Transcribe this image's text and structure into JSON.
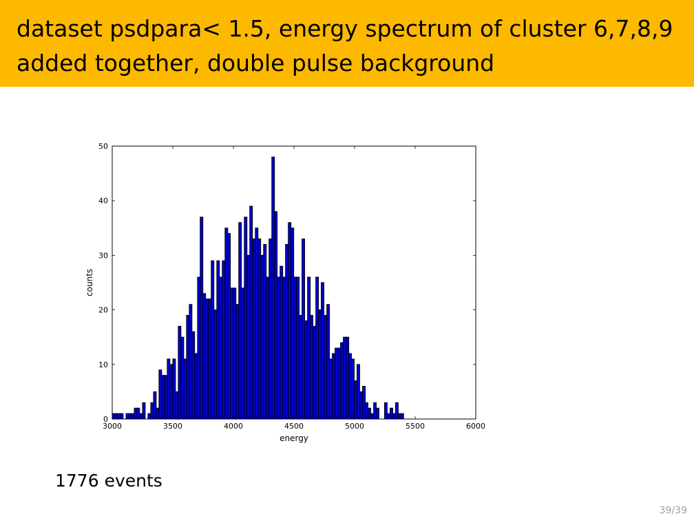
{
  "slide": {
    "title_line1": "dataset psdpara< 1.5, energy spectrum of cluster 6,7,8,9",
    "title_line2": "added together, double pulse background",
    "events_text": "1776 events",
    "page_number": "39/39",
    "colors": {
      "title_bar": "#fcb900",
      "bar_fill": "#0000cc",
      "bar_edge": "#000000"
    }
  },
  "chart_data": {
    "type": "bar",
    "title": "",
    "xlabel": "energy",
    "ylabel": "counts",
    "xlim": [
      3000,
      6000
    ],
    "ylim": [
      0,
      50
    ],
    "xticks": [
      3000,
      3500,
      4000,
      4500,
      5000,
      5500,
      6000
    ],
    "yticks": [
      0,
      10,
      20,
      30,
      40,
      50
    ],
    "grid": false,
    "bin_width": 22.7,
    "bins": [
      [
        3011,
        1
      ],
      [
        3034,
        1
      ],
      [
        3056,
        1
      ],
      [
        3079,
        1
      ],
      [
        3102,
        0
      ],
      [
        3125,
        1
      ],
      [
        3147,
        1
      ],
      [
        3170,
        1
      ],
      [
        3193,
        2
      ],
      [
        3215,
        2
      ],
      [
        3238,
        1
      ],
      [
        3261,
        3
      ],
      [
        3284,
        0
      ],
      [
        3306,
        1
      ],
      [
        3329,
        3
      ],
      [
        3352,
        5
      ],
      [
        3374,
        2
      ],
      [
        3397,
        9
      ],
      [
        3420,
        8
      ],
      [
        3442,
        8
      ],
      [
        3465,
        11
      ],
      [
        3488,
        10
      ],
      [
        3511,
        11
      ],
      [
        3533,
        5
      ],
      [
        3556,
        17
      ],
      [
        3579,
        15
      ],
      [
        3601,
        11
      ],
      [
        3624,
        19
      ],
      [
        3647,
        21
      ],
      [
        3669,
        16
      ],
      [
        3692,
        12
      ],
      [
        3715,
        26
      ],
      [
        3737,
        37
      ],
      [
        3760,
        23
      ],
      [
        3783,
        22
      ],
      [
        3806,
        22
      ],
      [
        3828,
        29
      ],
      [
        3851,
        20
      ],
      [
        3874,
        29
      ],
      [
        3896,
        26
      ],
      [
        3919,
        29
      ],
      [
        3942,
        35
      ],
      [
        3964,
        34
      ],
      [
        3987,
        24
      ],
      [
        4010,
        24
      ],
      [
        4033,
        21
      ],
      [
        4055,
        36
      ],
      [
        4078,
        24
      ],
      [
        4101,
        37
      ],
      [
        4123,
        30
      ],
      [
        4146,
        39
      ],
      [
        4169,
        33
      ],
      [
        4192,
        35
      ],
      [
        4214,
        33
      ],
      [
        4237,
        30
      ],
      [
        4260,
        32
      ],
      [
        4282,
        26
      ],
      [
        4305,
        33
      ],
      [
        4328,
        48
      ],
      [
        4350,
        38
      ],
      [
        4373,
        26
      ],
      [
        4396,
        28
      ],
      [
        4418,
        26
      ],
      [
        4441,
        32
      ],
      [
        4464,
        36
      ],
      [
        4487,
        35
      ],
      [
        4509,
        26
      ],
      [
        4532,
        26
      ],
      [
        4555,
        19
      ],
      [
        4577,
        33
      ],
      [
        4600,
        18
      ],
      [
        4623,
        26
      ],
      [
        4645,
        19
      ],
      [
        4668,
        17
      ],
      [
        4691,
        26
      ],
      [
        4714,
        20
      ],
      [
        4736,
        25
      ],
      [
        4759,
        19
      ],
      [
        4782,
        21
      ],
      [
        4804,
        11
      ],
      [
        4827,
        12
      ],
      [
        4850,
        13
      ],
      [
        4872,
        13
      ],
      [
        4895,
        14
      ],
      [
        4918,
        15
      ],
      [
        4941,
        15
      ],
      [
        4963,
        12
      ],
      [
        4986,
        11
      ],
      [
        5009,
        7
      ],
      [
        5031,
        10
      ],
      [
        5054,
        5
      ],
      [
        5077,
        6
      ],
      [
        5099,
        3
      ],
      [
        5122,
        2
      ],
      [
        5145,
        1
      ],
      [
        5168,
        3
      ],
      [
        5190,
        2
      ],
      [
        5213,
        0
      ],
      [
        5236,
        0
      ],
      [
        5258,
        3
      ],
      [
        5281,
        1
      ],
      [
        5304,
        2
      ],
      [
        5326,
        1
      ],
      [
        5349,
        3
      ],
      [
        5372,
        1
      ],
      [
        5394,
        1
      ]
    ]
  }
}
